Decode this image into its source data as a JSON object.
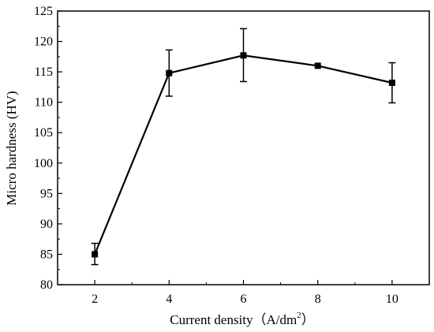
{
  "chart_data": {
    "type": "line",
    "xlabel": "Current density（A/dm",
    "xlabel_superscript": "2",
    "xlabel_suffix": "）",
    "ylabel": "Micro hardness (HV)",
    "xlim": [
      1.0,
      11.0
    ],
    "ylim": [
      80,
      125
    ],
    "x_ticks": [
      2,
      4,
      6,
      8,
      10
    ],
    "x_tick_labels": [
      "2",
      "4",
      "6",
      "8",
      "10"
    ],
    "y_ticks": [
      80,
      85,
      90,
      95,
      100,
      105,
      110,
      115,
      120,
      125
    ],
    "y_tick_labels": [
      "80",
      "85",
      "90",
      "95",
      "100",
      "105",
      "110",
      "115",
      "120",
      "125"
    ],
    "grid": false,
    "marker": "square",
    "series": [
      {
        "x": [
          2,
          4,
          6,
          8,
          10
        ],
        "y": [
          85.0,
          114.8,
          117.7,
          116.0,
          113.2
        ],
        "error_low": [
          83.3,
          111.0,
          113.4,
          116.0,
          109.9
        ],
        "error_high": [
          86.8,
          118.6,
          122.1,
          116.0,
          116.5
        ],
        "color": "#000000"
      }
    ]
  }
}
